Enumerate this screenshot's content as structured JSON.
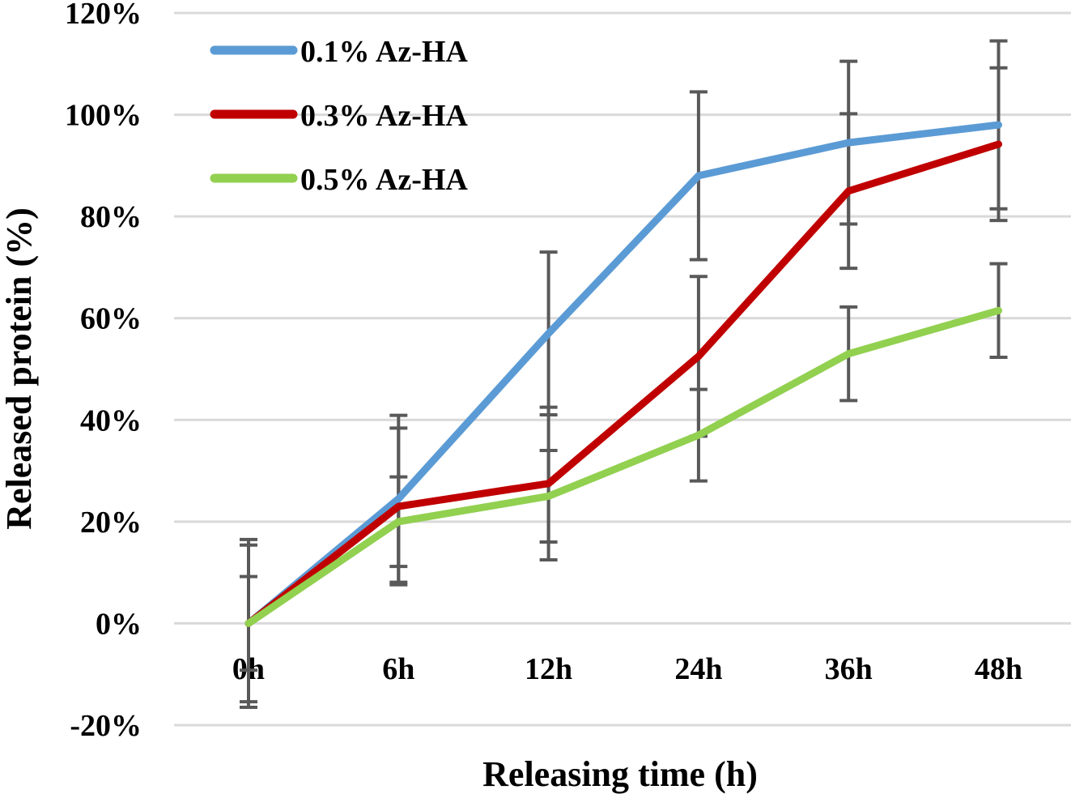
{
  "chart_data": {
    "type": "line",
    "title": "",
    "xlabel": "Releasing  time (h)",
    "ylabel": "Released protein (%)",
    "categories": [
      "0h",
      "6h",
      "12h",
      "24h",
      "36h",
      "48h"
    ],
    "ylim": [
      -20,
      120
    ],
    "yticks": [
      -20,
      0,
      20,
      40,
      60,
      80,
      100,
      120
    ],
    "ytick_labels": [
      "-20%",
      "0%",
      "20%",
      "40%",
      "60%",
      "80%",
      "100%",
      "120%"
    ],
    "grid": true,
    "legend_position": "top-left",
    "series": [
      {
        "name": "0.1% Az-HA",
        "color": "#5b9bd5",
        "values": [
          0,
          24.5,
          57,
          88,
          94.5,
          98
        ],
        "errors": [
          16.5,
          16.4,
          16,
          16.5,
          16,
          16.5
        ]
      },
      {
        "name": "0.3% Az-HA",
        "color": "#c00000",
        "values": [
          0,
          23,
          27.5,
          52.5,
          85,
          94.2
        ],
        "errors": [
          15.4,
          15.4,
          15,
          15.7,
          15.2,
          15
        ]
      },
      {
        "name": "0.5% Az-HA",
        "color": "#92d050",
        "values": [
          0,
          20,
          25,
          37,
          53,
          61.5
        ],
        "errors": [
          9.2,
          8.8,
          9,
          9,
          9.2,
          9.2
        ]
      }
    ],
    "error_bar_color": "#595959"
  }
}
